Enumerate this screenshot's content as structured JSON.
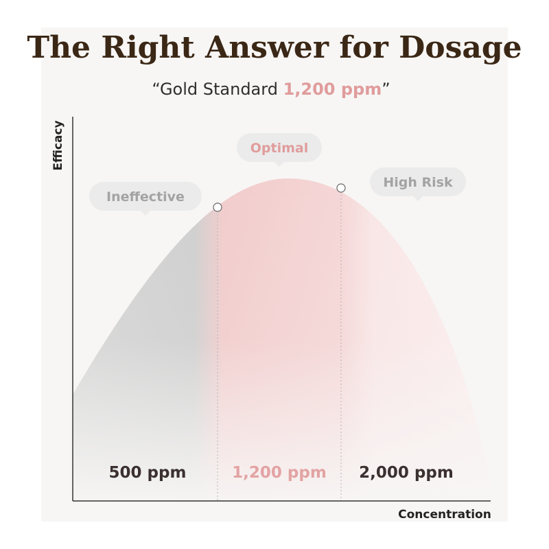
{
  "header": {
    "title": "The Right Answer for Dosage",
    "subtitle": {
      "before": "“Gold Standard ",
      "highlight": "1,200 ppm",
      "after": "”"
    }
  },
  "axes": {
    "y_label": "Efficacy",
    "x_label": "Concentration"
  },
  "zones": [
    {
      "label": "Ineffective",
      "concentration": "500 ppm"
    },
    {
      "label": "Optimal",
      "concentration": "1,200 ppm"
    },
    {
      "label": "High Risk",
      "concentration": "2,000 ppm"
    }
  ]
}
